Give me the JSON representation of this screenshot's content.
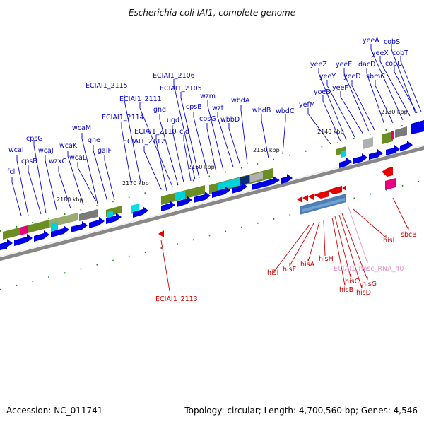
{
  "title": "Escherichia coli IAI1, complete genome",
  "footer": {
    "accession": "Accession: NC_011741",
    "topology": "Topology: circular; Length: 4,700,560 bp; Genes: 4,546"
  },
  "colors": {
    "forward_gene": "#0000e6",
    "reverse_gene": "#e60000",
    "misc_rna": "#e695c8",
    "olive": "#6b8e23",
    "cyan": "#00d2dc",
    "gray": "#7a7a7a",
    "steel_blue": "#4a7fb8",
    "magenta": "#e6007e",
    "green_tick": "#1a8a1a",
    "backbone": "#808080"
  },
  "kbp_ticks": [
    {
      "label": "2180 kbp",
      "kbp": 2180
    },
    {
      "label": "2170 kbp",
      "kbp": 2170
    },
    {
      "label": "2160 kbp",
      "kbp": 2160
    },
    {
      "label": "2150 kbp",
      "kbp": 2150
    },
    {
      "label": "2140 kbp",
      "kbp": 2140
    },
    {
      "label": "2130 kbp",
      "kbp": 2130
    }
  ],
  "forward_labels": [
    "fcl",
    "wcaI",
    "cpsB",
    "cpsG",
    "wcaJ",
    "wzxC",
    "wcaK",
    "wcaL",
    "wcaM",
    "gne",
    "galF",
    "ECIAI1_2114",
    "ECIAI1_2115",
    "ECIAI1_2112",
    "ECIAI1_2110",
    "ECIAI1_2111",
    "gnd",
    "ugd",
    "cld",
    "ECIAI1_2106",
    "ECIAI1_2105",
    "cpsB",
    "cpsG",
    "wzm",
    "wzt",
    "wbbD",
    "wbdA",
    "wbdB",
    "wbdC",
    "yefM",
    "yoeB",
    "yeeZ",
    "yeeY",
    "yeeF",
    "yeeE",
    "yeeD",
    "dacD",
    "sbmC",
    "yeeA",
    "yeeX",
    "cobS",
    "cobT",
    "cobU"
  ],
  "reverse_labels": [
    "ECIAI1_2113",
    "hisI",
    "hisF",
    "hisA",
    "hisH",
    "hisB",
    "hisC",
    "hisD",
    "hisG",
    "sbcB",
    "hisL"
  ],
  "misc_rna_label": "ECIAI1_misc_RNA_40"
}
